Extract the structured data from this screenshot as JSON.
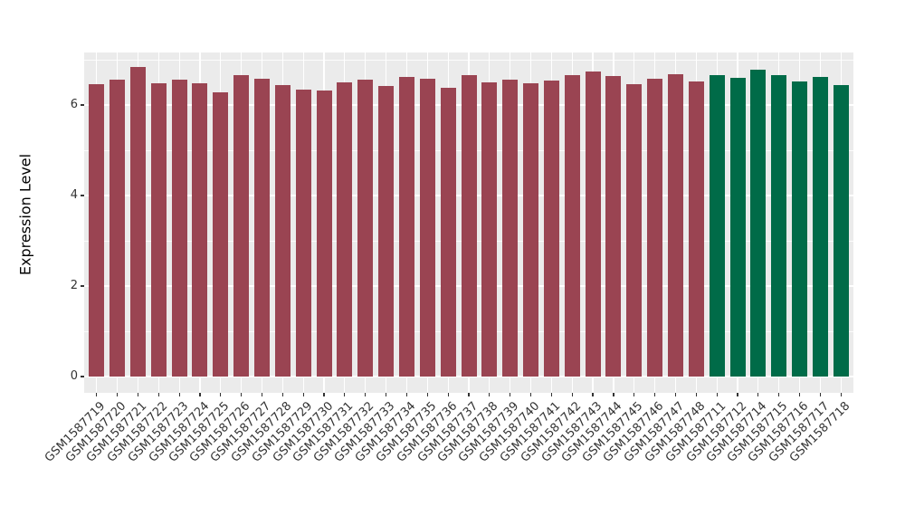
{
  "figure": {
    "background": "#ffffff",
    "panel_background": "#ebebeb",
    "gridline_color": "#ffffff",
    "axis_text_color": "#333333",
    "axis_title_color": "#000000"
  },
  "chart_data": {
    "type": "bar",
    "title": "",
    "xlabel": "",
    "ylabel": "Expression Level",
    "ylim": [
      -0.36,
      7.16
    ],
    "yticks_major": [
      0,
      2,
      4,
      6
    ],
    "yticks_minor": [
      1,
      3,
      5,
      7
    ],
    "grid": true,
    "legend": "none",
    "x_label_rotation_deg": 45,
    "bar_colors": {
      "maroon": "#9a4452",
      "green": "#006b48"
    },
    "categories": [
      "GSM1587719",
      "GSM1587720",
      "GSM1587721",
      "GSM1587722",
      "GSM1587723",
      "GSM1587724",
      "GSM1587725",
      "GSM1587726",
      "GSM1587727",
      "GSM1587728",
      "GSM1587729",
      "GSM1587730",
      "GSM1587731",
      "GSM1587732",
      "GSM1587733",
      "GSM1587734",
      "GSM1587735",
      "GSM1587736",
      "GSM1587737",
      "GSM1587738",
      "GSM1587739",
      "GSM1587740",
      "GSM1587741",
      "GSM1587742",
      "GSM1587743",
      "GSM1587744",
      "GSM1587745",
      "GSM1587746",
      "GSM1587747",
      "GSM1587748",
      "GSM1587711",
      "GSM1587712",
      "GSM1587714",
      "GSM1587715",
      "GSM1587716",
      "GSM1587717",
      "GSM1587718"
    ],
    "values": [
      6.46,
      6.56,
      6.85,
      6.48,
      6.56,
      6.48,
      6.28,
      6.66,
      6.58,
      6.44,
      6.34,
      6.33,
      6.5,
      6.56,
      6.42,
      6.62,
      6.58,
      6.38,
      6.66,
      6.5,
      6.56,
      6.48,
      6.55,
      6.67,
      6.74,
      6.64,
      6.46,
      6.58,
      6.68,
      6.52,
      6.66,
      6.6,
      6.78,
      6.66,
      6.52,
      6.62,
      6.44
    ],
    "groups": [
      "maroon",
      "maroon",
      "maroon",
      "maroon",
      "maroon",
      "maroon",
      "maroon",
      "maroon",
      "maroon",
      "maroon",
      "maroon",
      "maroon",
      "maroon",
      "maroon",
      "maroon",
      "maroon",
      "maroon",
      "maroon",
      "maroon",
      "maroon",
      "maroon",
      "maroon",
      "maroon",
      "maroon",
      "maroon",
      "maroon",
      "maroon",
      "maroon",
      "maroon",
      "maroon",
      "green",
      "green",
      "green",
      "green",
      "green",
      "green",
      "green"
    ]
  }
}
